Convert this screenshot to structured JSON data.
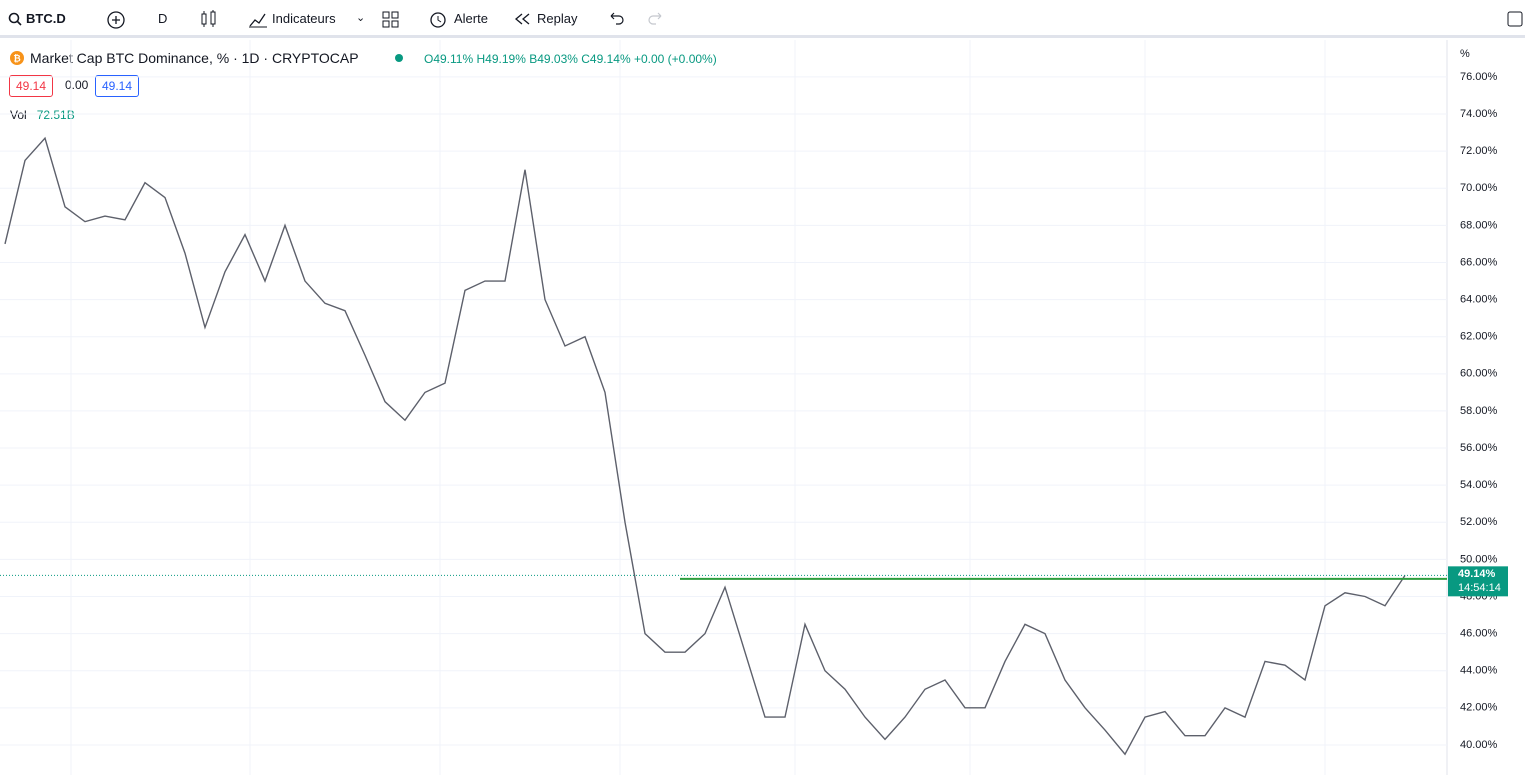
{
  "toolbar": {
    "symbol": "BTC.D",
    "interval": "D",
    "indicators": "Indicateurs",
    "alert": "Alerte",
    "replay": "Replay"
  },
  "legend": {
    "title": "Market Cap BTC Dominance, % · 1D · CRYPTOCAP",
    "open": "O49.11%",
    "high": "H49.19%",
    "low": "B49.03%",
    "close": "C49.14%",
    "change": "+0.00 (+0.00%)",
    "bid": "49.14",
    "spread": "0.00",
    "ask": "49.14",
    "volume_label": "Vol",
    "volume": "72.51B"
  },
  "chart_data": {
    "type": "line",
    "y_axis_label": "%",
    "values": [
      67,
      71.5,
      72.7,
      69,
      68.2,
      68.5,
      68.3,
      70.3,
      69.5,
      66.5,
      62.5,
      65.5,
      67.5,
      65,
      68,
      65,
      63.8,
      63.4,
      61,
      58.5,
      57.5,
      59,
      59.5,
      64.5,
      65,
      65,
      71,
      64,
      61.5,
      62,
      59,
      52,
      46,
      45,
      45,
      46,
      48.5,
      45,
      41.5,
      41.5,
      46.5,
      44,
      43,
      41.5,
      40.3,
      41.5,
      43,
      43.5,
      42,
      42,
      44.5,
      46.5,
      46,
      43.5,
      42,
      40.8,
      39.5,
      41.5,
      41.8,
      40.5,
      40.5,
      42,
      41.5,
      44.5,
      44.3,
      43.5,
      47.5,
      48.2,
      48,
      47.5,
      49.14
    ],
    "color": "#5d606b",
    "ylim": [
      38.38,
      77.99
    ],
    "yticks": [
      {
        "value": 40,
        "label": "40.00%"
      },
      {
        "value": 42,
        "label": "42.00%"
      },
      {
        "value": 44,
        "label": "44.00%"
      },
      {
        "value": 46,
        "label": "46.00%"
      },
      {
        "value": 48,
        "label": "48.00%"
      },
      {
        "value": 50,
        "label": "50.00%"
      },
      {
        "value": 52,
        "label": "52.00%"
      },
      {
        "value": 54,
        "label": "54.00%"
      },
      {
        "value": 56,
        "label": "56.00%"
      },
      {
        "value": 58,
        "label": "58.00%"
      },
      {
        "value": 60,
        "label": "60.00%"
      },
      {
        "value": 62,
        "label": "62.00%"
      },
      {
        "value": 64,
        "label": "64.00%"
      },
      {
        "value": 66,
        "label": "66.00%"
      },
      {
        "value": 68,
        "label": "68.00%"
      },
      {
        "value": 70,
        "label": "70.00%"
      },
      {
        "value": 72,
        "label": "72.00%"
      },
      {
        "value": 74,
        "label": "74.00%"
      },
      {
        "value": 76,
        "label": "76.00%"
      }
    ],
    "grid": true,
    "last_price": {
      "value": 49.14,
      "label": "49.14%",
      "countdown": "14:54:14",
      "color": "#089981"
    },
    "hline": {
      "value": 48.95,
      "color": "#2e9e3e"
    }
  }
}
